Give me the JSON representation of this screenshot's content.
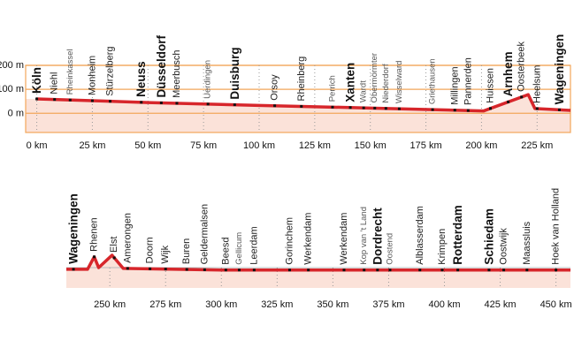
{
  "chart_data": [
    {
      "type": "line",
      "x": [
        0,
        50,
        100,
        150,
        201,
        221,
        224,
        240
      ],
      "values": [
        60,
        45,
        33,
        22,
        10,
        78,
        20,
        12
      ],
      "xlim": [
        -5,
        240
      ],
      "ylim": [
        -80,
        200
      ],
      "xticks": [
        {
          "value": 0,
          "label": "0 km"
        },
        {
          "value": 25,
          "label": "25 km"
        },
        {
          "value": 50,
          "label": "50 km"
        },
        {
          "value": 75,
          "label": "75 km"
        },
        {
          "value": 100,
          "label": "100 km"
        },
        {
          "value": 125,
          "label": "125 km"
        },
        {
          "value": 150,
          "label": "150 km"
        },
        {
          "value": 175,
          "label": "175 km"
        },
        {
          "value": 200,
          "label": "200 km"
        },
        {
          "value": 225,
          "label": "225 km"
        }
      ],
      "yticks": [
        {
          "value": 0,
          "label": "0 m"
        },
        {
          "value": 100,
          "label": "100 m"
        },
        {
          "value": 200,
          "label": "200 m"
        }
      ],
      "grid": true,
      "color": "#d7262b",
      "places": [
        {
          "name": "Köln",
          "x": 0,
          "weight": "major"
        },
        {
          "name": "Niehl",
          "x": 8,
          "weight": "medium"
        },
        {
          "name": "Rheinkassel",
          "x": 15,
          "weight": "minor"
        },
        {
          "name": "Monheim",
          "x": 25,
          "weight": "medium"
        },
        {
          "name": "Stürzelberg",
          "x": 33,
          "weight": "medium"
        },
        {
          "name": "Neuss",
          "x": 47,
          "weight": "major"
        },
        {
          "name": "Düsseldorf",
          "x": 56,
          "weight": "major"
        },
        {
          "name": "Meerbusch",
          "x": 63,
          "weight": "medium"
        },
        {
          "name": "Uerdingen",
          "x": 77,
          "weight": "minor"
        },
        {
          "name": "Duisburg",
          "x": 89,
          "weight": "major"
        },
        {
          "name": "Orsoy",
          "x": 107,
          "weight": "medium"
        },
        {
          "name": "Rheinberg",
          "x": 119,
          "weight": "medium"
        },
        {
          "name": "Perrich",
          "x": 133,
          "weight": "minor"
        },
        {
          "name": "Xanten",
          "x": 141,
          "weight": "major"
        },
        {
          "name": "Wardt",
          "x": 147,
          "weight": "minor"
        },
        {
          "name": "Obermörmter",
          "x": 152,
          "weight": "minor"
        },
        {
          "name": "Niederdorf",
          "x": 157,
          "weight": "minor"
        },
        {
          "name": "Wisselward",
          "x": 163,
          "weight": "minor"
        },
        {
          "name": "Griethausen",
          "x": 178,
          "weight": "minor"
        },
        {
          "name": "Millingen",
          "x": 188,
          "weight": "medium"
        },
        {
          "name": "Pannerden",
          "x": 194,
          "weight": "medium"
        },
        {
          "name": "Huissen",
          "x": 204,
          "weight": "medium"
        },
        {
          "name": "Arnhem",
          "x": 212,
          "weight": "major"
        },
        {
          "name": "Oosterbeek",
          "x": 218,
          "weight": "medium"
        },
        {
          "name": "Heelsum",
          "x": 225,
          "weight": "medium"
        },
        {
          "name": "Wageningen",
          "x": 235,
          "weight": "major"
        }
      ]
    },
    {
      "type": "line",
      "x": [
        230.5,
        240,
        243,
        245,
        251,
        256,
        300,
        456.5
      ],
      "values": [
        8,
        8,
        60,
        15,
        67,
        12,
        5,
        5
      ],
      "xlim": [
        230.5,
        456.5
      ],
      "ylim": [
        -70,
        200
      ],
      "xticks": [
        {
          "value": 250,
          "label": "250 km"
        },
        {
          "value": 275,
          "label": "275 km"
        },
        {
          "value": 300,
          "label": "300 km"
        },
        {
          "value": 325,
          "label": "325 km"
        },
        {
          "value": 350,
          "label": "350 km"
        },
        {
          "value": 375,
          "label": "375 km"
        },
        {
          "value": 400,
          "label": "400 km"
        },
        {
          "value": 425,
          "label": "425 km"
        },
        {
          "value": 450,
          "label": "450 km"
        }
      ],
      "grid": true,
      "color": "#d7262b",
      "places": [
        {
          "name": "Wageningen",
          "x": 233.7,
          "weight": "major"
        },
        {
          "name": "Rhenen",
          "x": 243,
          "weight": "medium"
        },
        {
          "name": "Elst",
          "x": 252,
          "weight": "medium"
        },
        {
          "name": "Amerongen",
          "x": 258,
          "weight": "medium"
        },
        {
          "name": "Doorn",
          "x": 268,
          "weight": "medium"
        },
        {
          "name": "Wijk",
          "x": 275,
          "weight": "medium"
        },
        {
          "name": "Buren",
          "x": 284.5,
          "weight": "medium"
        },
        {
          "name": "Geldermalsen",
          "x": 292.5,
          "weight": "medium"
        },
        {
          "name": "Beesd",
          "x": 302,
          "weight": "medium"
        },
        {
          "name": "Gellicum",
          "x": 308,
          "weight": "minor"
        },
        {
          "name": "Leerdam",
          "x": 314.7,
          "weight": "medium"
        },
        {
          "name": "Gorinchem",
          "x": 330.6,
          "weight": "medium"
        },
        {
          "name": "Werkendam",
          "x": 339,
          "weight": "medium"
        },
        {
          "name": "Werkendam",
          "x": 355,
          "weight": "medium"
        },
        {
          "name": "Kop van 't Land",
          "x": 364,
          "weight": "minor"
        },
        {
          "name": "Dordrecht",
          "x": 370,
          "weight": "major"
        },
        {
          "name": "Oostend",
          "x": 375.6,
          "weight": "minor"
        },
        {
          "name": "Alblasserdam",
          "x": 389,
          "weight": "medium"
        },
        {
          "name": "Krimpen",
          "x": 399,
          "weight": "medium"
        },
        {
          "name": "Rotterdam",
          "x": 406,
          "weight": "major"
        },
        {
          "name": "Schiedam",
          "x": 420,
          "weight": "major"
        },
        {
          "name": "Oostwijk",
          "x": 426.6,
          "weight": "medium"
        },
        {
          "name": "Maassluis",
          "x": 437,
          "weight": "medium"
        },
        {
          "name": "Hoek van Holland",
          "x": 450,
          "weight": "medium"
        }
      ]
    }
  ]
}
